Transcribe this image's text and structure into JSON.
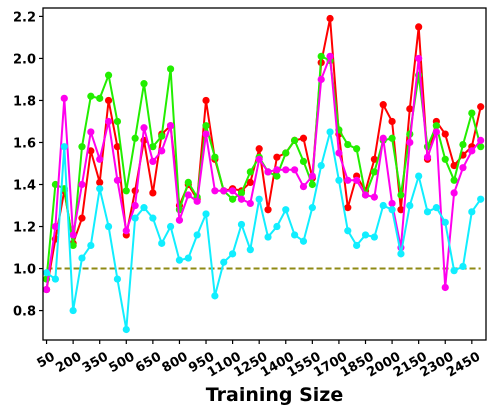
{
  "chart_data": {
    "type": "line",
    "title": "",
    "xlabel": "Training Size",
    "ylabel": "",
    "xlim": [
      30,
      2530
    ],
    "ylim": [
      0.66,
      2.24
    ],
    "grid": false,
    "legend": "none",
    "x_ticks": [
      50,
      200,
      350,
      500,
      650,
      800,
      950,
      1100,
      1250,
      1400,
      1550,
      1700,
      1850,
      2000,
      2150,
      2300,
      2450
    ],
    "y_ticks": [
      0.8,
      1.0,
      1.2,
      1.4,
      1.6,
      1.8,
      2.0,
      2.2
    ],
    "y_tick_labels": [
      "0.8",
      "1.0",
      "1.2",
      "1.4",
      "1.6",
      "1.8",
      "2.0",
      "2.2"
    ],
    "baseline": {
      "y": 1.0,
      "color": "#8f8a14",
      "style": "dashed"
    },
    "x": [
      50,
      100,
      150,
      200,
      250,
      300,
      350,
      400,
      450,
      500,
      550,
      600,
      650,
      700,
      750,
      800,
      850,
      900,
      950,
      1000,
      1050,
      1100,
      1150,
      1200,
      1250,
      1300,
      1350,
      1400,
      1450,
      1500,
      1550,
      1600,
      1650,
      1700,
      1750,
      1800,
      1850,
      1900,
      1950,
      2000,
      2050,
      2100,
      2150,
      2200,
      2250,
      2300,
      2350,
      2400,
      2450,
      2500
    ],
    "series": [
      {
        "color": "#ff0000",
        "values": [
          0.9,
          1.14,
          1.37,
          1.12,
          1.24,
          1.56,
          1.41,
          1.8,
          1.58,
          1.16,
          1.37,
          1.61,
          1.36,
          1.64,
          1.68,
          1.3,
          1.4,
          1.33,
          1.8,
          1.52,
          1.37,
          1.38,
          1.37,
          1.41,
          1.57,
          1.28,
          1.53,
          1.55,
          1.61,
          1.62,
          1.43,
          1.98,
          2.19,
          1.64,
          1.29,
          1.44,
          1.37,
          1.52,
          1.78,
          1.7,
          1.28,
          1.76,
          2.15,
          1.52,
          1.7,
          1.64,
          1.49,
          1.54,
          1.58,
          1.77
        ]
      },
      {
        "color": "#22ee00",
        "values": [
          0.95,
          1.4,
          1.38,
          1.11,
          1.58,
          1.82,
          1.81,
          1.92,
          1.7,
          1.37,
          1.62,
          1.88,
          1.58,
          1.63,
          1.95,
          1.28,
          1.41,
          1.34,
          1.68,
          1.53,
          1.37,
          1.33,
          1.36,
          1.46,
          1.53,
          1.46,
          1.44,
          1.55,
          1.61,
          1.51,
          1.4,
          2.01,
          1.99,
          1.66,
          1.59,
          1.57,
          1.35,
          1.46,
          1.61,
          1.62,
          1.35,
          1.64,
          1.92,
          1.58,
          1.68,
          1.52,
          1.42,
          1.59,
          1.74,
          1.58
        ]
      },
      {
        "color": "#ff00ee",
        "values": [
          0.9,
          1.2,
          1.81,
          1.16,
          1.4,
          1.65,
          1.52,
          1.7,
          1.42,
          1.18,
          1.3,
          1.67,
          1.51,
          1.56,
          1.68,
          1.23,
          1.35,
          1.32,
          1.64,
          1.37,
          1.37,
          1.37,
          1.33,
          1.31,
          1.52,
          1.46,
          1.47,
          1.47,
          1.47,
          1.39,
          1.44,
          1.9,
          2.01,
          1.55,
          1.42,
          1.42,
          1.35,
          1.34,
          1.62,
          1.31,
          1.1,
          1.6,
          2.0,
          1.53,
          1.65,
          0.91,
          1.36,
          1.48,
          1.56,
          1.61
        ]
      },
      {
        "color": "#11eeff",
        "values": [
          0.98,
          0.95,
          1.58,
          0.8,
          1.05,
          1.11,
          1.38,
          1.2,
          0.95,
          0.71,
          1.24,
          1.29,
          1.24,
          1.12,
          1.2,
          1.04,
          1.05,
          1.16,
          1.26,
          0.87,
          1.03,
          1.07,
          1.21,
          1.09,
          1.33,
          1.15,
          1.2,
          1.28,
          1.16,
          1.13,
          1.29,
          1.49,
          1.65,
          1.42,
          1.18,
          1.11,
          1.16,
          1.15,
          1.3,
          1.28,
          1.07,
          1.3,
          1.44,
          1.27,
          1.29,
          1.22,
          0.99,
          1.01,
          1.27,
          1.33
        ]
      }
    ]
  }
}
